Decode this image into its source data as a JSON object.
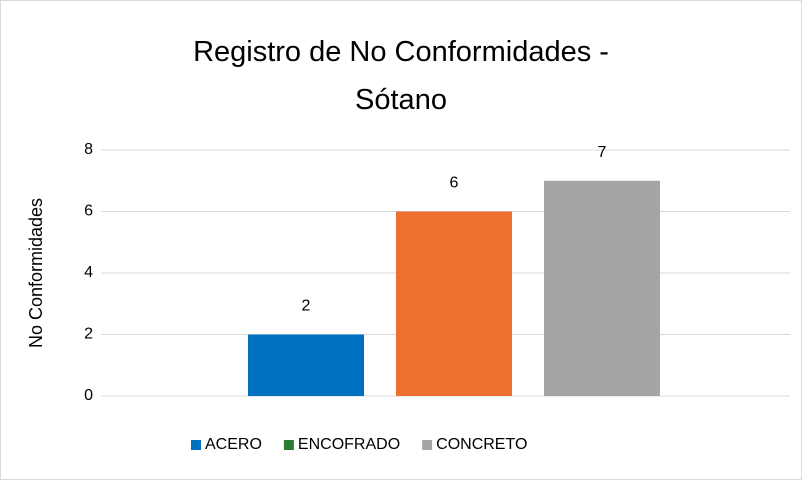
{
  "chart_data": {
    "type": "bar",
    "title": "Registro de No Conformidades - Sótano",
    "ylabel": "No Conformidades",
    "series": [
      {
        "name": "ACERO",
        "color": "#0070c0",
        "values": [
          2
        ]
      },
      {
        "name": "ENCOFRADO",
        "color": "#2e7d32",
        "bar_color": "#ed7031",
        "values": [
          6
        ]
      },
      {
        "name": "CONCRETO",
        "color": "#a5a5a5",
        "values": [
          7
        ]
      }
    ],
    "ylim": [
      0,
      8
    ],
    "yticks": [
      0,
      2,
      4,
      6,
      8
    ],
    "grid": true,
    "legend": "bottom"
  }
}
